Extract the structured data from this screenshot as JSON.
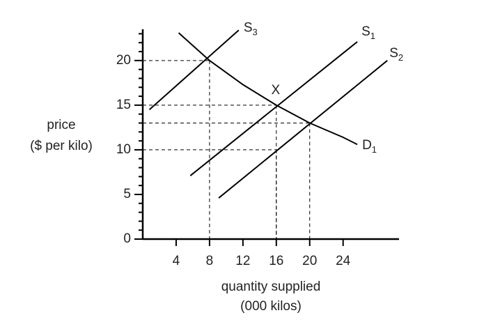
{
  "chart_data": {
    "type": "line",
    "xlabel": [
      "quantity supplied",
      "(000 kilos)"
    ],
    "ylabel": [
      "price",
      "($ per kilo)"
    ],
    "xlim": [
      0,
      30.7
    ],
    "ylim": [
      0,
      23.5
    ],
    "xticks": [
      4,
      8,
      12,
      16,
      20,
      24
    ],
    "yticks": [
      0,
      5,
      10,
      15,
      20
    ],
    "yminorticks": [
      1,
      2,
      3,
      4,
      6,
      7,
      8,
      9,
      11,
      12,
      13,
      14,
      16,
      17,
      18,
      19,
      21,
      22,
      23
    ],
    "color": "#000000",
    "series": [
      {
        "name": "S",
        "subscript": "3",
        "x": [
          0.8,
          11.5
        ],
        "y": [
          14.5,
          23.4
        ]
      },
      {
        "name": "S",
        "subscript": "1",
        "x": [
          5.7,
          25.7
        ],
        "y": [
          7.1,
          22.1
        ]
      },
      {
        "name": "S",
        "subscript": "2",
        "x": [
          9.1,
          29.3
        ],
        "y": [
          4.6,
          20
        ]
      },
      {
        "name": "D",
        "subscript": "1",
        "x": [
          4.3,
          8,
          12,
          16,
          20,
          24,
          25.7
        ],
        "y": [
          23.1,
          20,
          17.3,
          15,
          13,
          11.4,
          10.6
        ]
      }
    ],
    "guides": [
      {
        "x": 8,
        "y": 20
      },
      {
        "x": 16,
        "y": 15
      },
      {
        "x": 20,
        "y": 13
      },
      {
        "x": 16,
        "y": 10
      }
    ],
    "annotations": [
      {
        "text": "X",
        "x": 16,
        "y": 15
      }
    ]
  }
}
